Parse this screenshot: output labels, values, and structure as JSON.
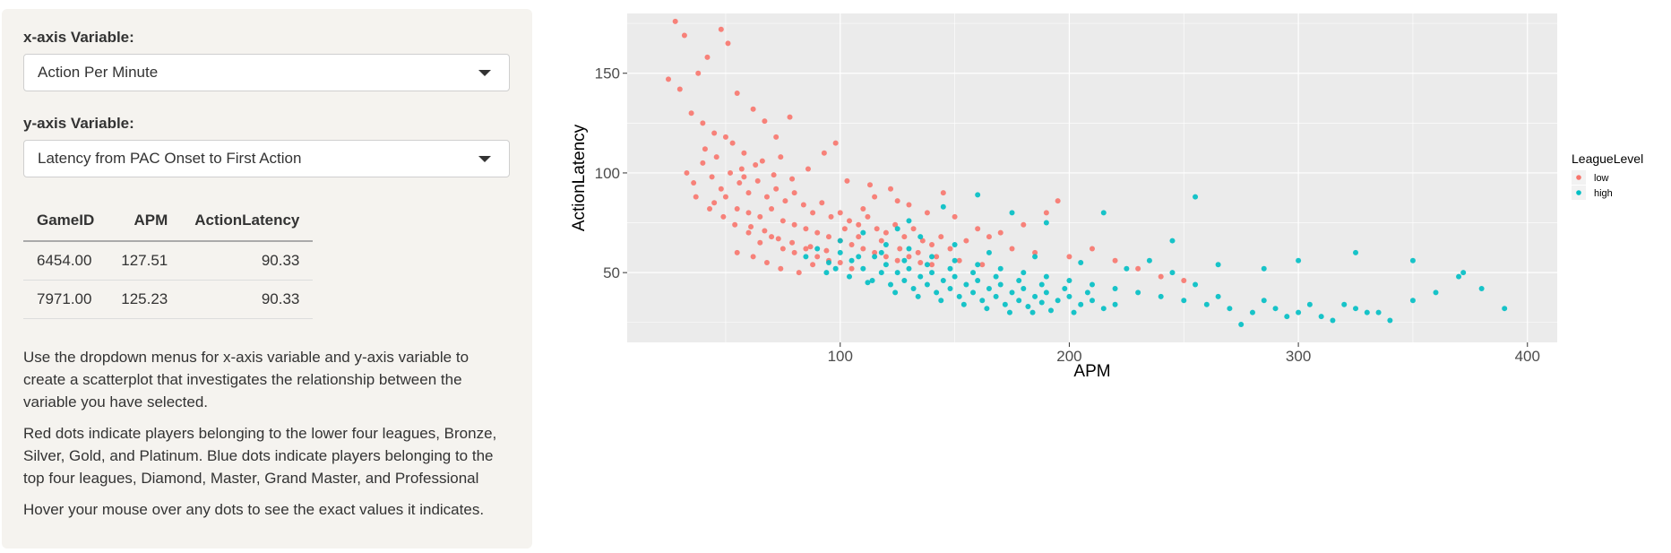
{
  "sidebar": {
    "x_label": "x-axis Variable:",
    "x_selected": "Action Per Minute",
    "y_label": "y-axis Variable:",
    "y_selected": "Latency from PAC Onset to First Action",
    "table": {
      "headers": [
        "GameID",
        "APM",
        "ActionLatency"
      ],
      "rows": [
        [
          "6454.00",
          "127.51",
          "90.33"
        ],
        [
          "7971.00",
          "125.23",
          "90.33"
        ]
      ]
    },
    "paragraphs": [
      "Use the dropdown menus for x-axis variable and y-axis variable to create a scatterplot that investigates the relationship between the variable you have selected.",
      "Red dots indicate players belonging to the lower four leagues, Bronze, Silver, Gold, and Platinum. Blue dots indicate players belonging to the top four leagues, Diamond, Master, Grand Master, and Professional",
      "Hover your mouse over any dots to see the exact values it indicates."
    ]
  },
  "colors": {
    "low": "#F8766D",
    "high": "#00BFC4",
    "panel": "#EBEBEB",
    "grid": "#FFFFFF"
  },
  "chart_data": {
    "type": "scatter",
    "xlabel": "APM",
    "ylabel": "ActionLatency",
    "xlim": [
      7,
      413
    ],
    "ylim": [
      15,
      180
    ],
    "x_ticks": [
      100,
      200,
      300,
      400
    ],
    "y_ticks": [
      50,
      100,
      150
    ],
    "grid": true,
    "legend": {
      "title": "LeagueLevel",
      "position": "right",
      "entries": [
        "low",
        "high"
      ]
    },
    "series": [
      {
        "name": "low",
        "color": "#F8766D",
        "points": [
          [
            25,
            147
          ],
          [
            28,
            176
          ],
          [
            30,
            142
          ],
          [
            32,
            169
          ],
          [
            38,
            150
          ],
          [
            42,
            158
          ],
          [
            48,
            172
          ],
          [
            51,
            165
          ],
          [
            55,
            140
          ],
          [
            62,
            132
          ],
          [
            67,
            126
          ],
          [
            72,
            118
          ],
          [
            78,
            128
          ],
          [
            93,
            110
          ],
          [
            98,
            115
          ],
          [
            35,
            130
          ],
          [
            40,
            125
          ],
          [
            45,
            120
          ],
          [
            50,
            118
          ],
          [
            58,
            110
          ],
          [
            33,
            100
          ],
          [
            36,
            95
          ],
          [
            40,
            105
          ],
          [
            44,
            98
          ],
          [
            48,
            92
          ],
          [
            52,
            100
          ],
          [
            56,
            95
          ],
          [
            60,
            90
          ],
          [
            64,
            96
          ],
          [
            68,
            88
          ],
          [
            72,
            92
          ],
          [
            76,
            86
          ],
          [
            80,
            90
          ],
          [
            84,
            84
          ],
          [
            88,
            80
          ],
          [
            92,
            85
          ],
          [
            96,
            78
          ],
          [
            100,
            80
          ],
          [
            104,
            76
          ],
          [
            108,
            74
          ],
          [
            112,
            78
          ],
          [
            116,
            72
          ],
          [
            120,
            70
          ],
          [
            124,
            74
          ],
          [
            128,
            68
          ],
          [
            132,
            72
          ],
          [
            136,
            66
          ],
          [
            140,
            64
          ],
          [
            144,
            68
          ],
          [
            148,
            62
          ],
          [
            45,
            85
          ],
          [
            50,
            88
          ],
          [
            55,
            82
          ],
          [
            60,
            80
          ],
          [
            65,
            78
          ],
          [
            70,
            82
          ],
          [
            75,
            76
          ],
          [
            80,
            74
          ],
          [
            85,
            72
          ],
          [
            90,
            70
          ],
          [
            95,
            68
          ],
          [
            100,
            66
          ],
          [
            105,
            64
          ],
          [
            110,
            62
          ],
          [
            115,
            60
          ],
          [
            120,
            58
          ],
          [
            125,
            56
          ],
          [
            130,
            58
          ],
          [
            135,
            55
          ],
          [
            140,
            54
          ],
          [
            60,
            70
          ],
          [
            65,
            65
          ],
          [
            70,
            68
          ],
          [
            75,
            62
          ],
          [
            80,
            60
          ],
          [
            85,
            62
          ],
          [
            90,
            58
          ],
          [
            95,
            56
          ],
          [
            100,
            55
          ],
          [
            105,
            52
          ],
          [
            55,
            60
          ],
          [
            62,
            58
          ],
          [
            68,
            55
          ],
          [
            74,
            52
          ],
          [
            82,
            50
          ],
          [
            88,
            54
          ],
          [
            58,
            98
          ],
          [
            63,
            104
          ],
          [
            71,
            99
          ],
          [
            79,
            97
          ],
          [
            110,
            82
          ],
          [
            115,
            88
          ],
          [
            122,
            92
          ],
          [
            130,
            84
          ],
          [
            138,
            80
          ],
          [
            145,
            90
          ],
          [
            150,
            78
          ],
          [
            160,
            72
          ],
          [
            170,
            70
          ],
          [
            180,
            74
          ],
          [
            190,
            80
          ],
          [
            195,
            86
          ],
          [
            155,
            66
          ],
          [
            165,
            68
          ],
          [
            175,
            62
          ],
          [
            185,
            60
          ],
          [
            200,
            58
          ],
          [
            210,
            62
          ],
          [
            220,
            56
          ],
          [
            230,
            52
          ],
          [
            240,
            48
          ],
          [
            250,
            46
          ],
          [
            102,
            72
          ],
          [
            108,
            68
          ],
          [
            118,
            66
          ],
          [
            126,
            62
          ],
          [
            134,
            60
          ],
          [
            142,
            58
          ],
          [
            152,
            56
          ],
          [
            162,
            54
          ],
          [
            41,
            112
          ],
          [
            46,
            108
          ],
          [
            53,
            115
          ],
          [
            57,
            102
          ],
          [
            66,
            106
          ],
          [
            74,
            108
          ],
          [
            86,
            102
          ],
          [
            103,
            96
          ],
          [
            113,
            94
          ],
          [
            125,
            86
          ],
          [
            37,
            88
          ],
          [
            43,
            82
          ],
          [
            49,
            78
          ],
          [
            54,
            74
          ],
          [
            61,
            73
          ],
          [
            67,
            71
          ],
          [
            73,
            67
          ],
          [
            79,
            65
          ],
          [
            87,
            63
          ],
          [
            94,
            61
          ]
        ]
      },
      {
        "name": "high",
        "color": "#00BFC4",
        "points": [
          [
            85,
            58
          ],
          [
            90,
            62
          ],
          [
            95,
            55
          ],
          [
            100,
            60
          ],
          [
            105,
            56
          ],
          [
            110,
            52
          ],
          [
            115,
            58
          ],
          [
            120,
            54
          ],
          [
            125,
            50
          ],
          [
            130,
            52
          ],
          [
            135,
            48
          ],
          [
            140,
            50
          ],
          [
            145,
            46
          ],
          [
            150,
            48
          ],
          [
            155,
            44
          ],
          [
            160,
            46
          ],
          [
            165,
            42
          ],
          [
            170,
            44
          ],
          [
            175,
            40
          ],
          [
            180,
            42
          ],
          [
            185,
            38
          ],
          [
            190,
            40
          ],
          [
            195,
            36
          ],
          [
            200,
            38
          ],
          [
            205,
            34
          ],
          [
            210,
            36
          ],
          [
            215,
            32
          ],
          [
            220,
            34
          ],
          [
            100,
            66
          ],
          [
            110,
            70
          ],
          [
            120,
            64
          ],
          [
            130,
            62
          ],
          [
            140,
            58
          ],
          [
            150,
            56
          ],
          [
            160,
            54
          ],
          [
            170,
            52
          ],
          [
            180,
            50
          ],
          [
            190,
            48
          ],
          [
            200,
            46
          ],
          [
            210,
            44
          ],
          [
            220,
            42
          ],
          [
            230,
            40
          ],
          [
            240,
            38
          ],
          [
            250,
            36
          ],
          [
            260,
            34
          ],
          [
            270,
            32
          ],
          [
            280,
            30
          ],
          [
            290,
            32
          ],
          [
            300,
            30
          ],
          [
            310,
            28
          ],
          [
            320,
            34
          ],
          [
            330,
            30
          ],
          [
            340,
            26
          ],
          [
            350,
            36
          ],
          [
            360,
            40
          ],
          [
            370,
            48
          ],
          [
            380,
            42
          ],
          [
            390,
            32
          ],
          [
            255,
            88
          ],
          [
            215,
            80
          ],
          [
            190,
            75
          ],
          [
            175,
            80
          ],
          [
            160,
            89
          ],
          [
            145,
            83
          ],
          [
            130,
            76
          ],
          [
            125,
            72
          ],
          [
            135,
            68
          ],
          [
            150,
            64
          ],
          [
            165,
            60
          ],
          [
            185,
            58
          ],
          [
            205,
            55
          ],
          [
            225,
            52
          ],
          [
            245,
            50
          ],
          [
            265,
            54
          ],
          [
            285,
            52
          ],
          [
            300,
            56
          ],
          [
            325,
            60
          ],
          [
            350,
            56
          ],
          [
            372,
            50
          ],
          [
            275,
            24
          ],
          [
            295,
            28
          ],
          [
            315,
            26
          ],
          [
            335,
            30
          ],
          [
            245,
            66
          ],
          [
            235,
            56
          ],
          [
            255,
            44
          ],
          [
            265,
            38
          ],
          [
            285,
            36
          ],
          [
            305,
            34
          ],
          [
            325,
            32
          ],
          [
            112,
            45
          ],
          [
            122,
            44
          ],
          [
            132,
            42
          ],
          [
            142,
            40
          ],
          [
            152,
            38
          ],
          [
            162,
            36
          ],
          [
            172,
            34
          ],
          [
            182,
            33
          ],
          [
            192,
            31
          ],
          [
            202,
            30
          ],
          [
            94,
            50
          ],
          [
            104,
            48
          ],
          [
            114,
            46
          ],
          [
            124,
            40
          ],
          [
            134,
            38
          ],
          [
            144,
            36
          ],
          [
            154,
            34
          ],
          [
            164,
            32
          ],
          [
            174,
            30
          ],
          [
            184,
            30
          ],
          [
            118,
            60
          ],
          [
            128,
            56
          ],
          [
            138,
            54
          ],
          [
            148,
            52
          ],
          [
            158,
            50
          ],
          [
            168,
            48
          ],
          [
            178,
            46
          ],
          [
            188,
            44
          ],
          [
            198,
            42
          ],
          [
            208,
            40
          ],
          [
            98,
            52
          ],
          [
            108,
            58
          ],
          [
            118,
            50
          ],
          [
            128,
            46
          ],
          [
            138,
            44
          ],
          [
            148,
            42
          ],
          [
            158,
            40
          ],
          [
            168,
            38
          ],
          [
            178,
            36
          ],
          [
            188,
            35
          ]
        ]
      }
    ]
  }
}
